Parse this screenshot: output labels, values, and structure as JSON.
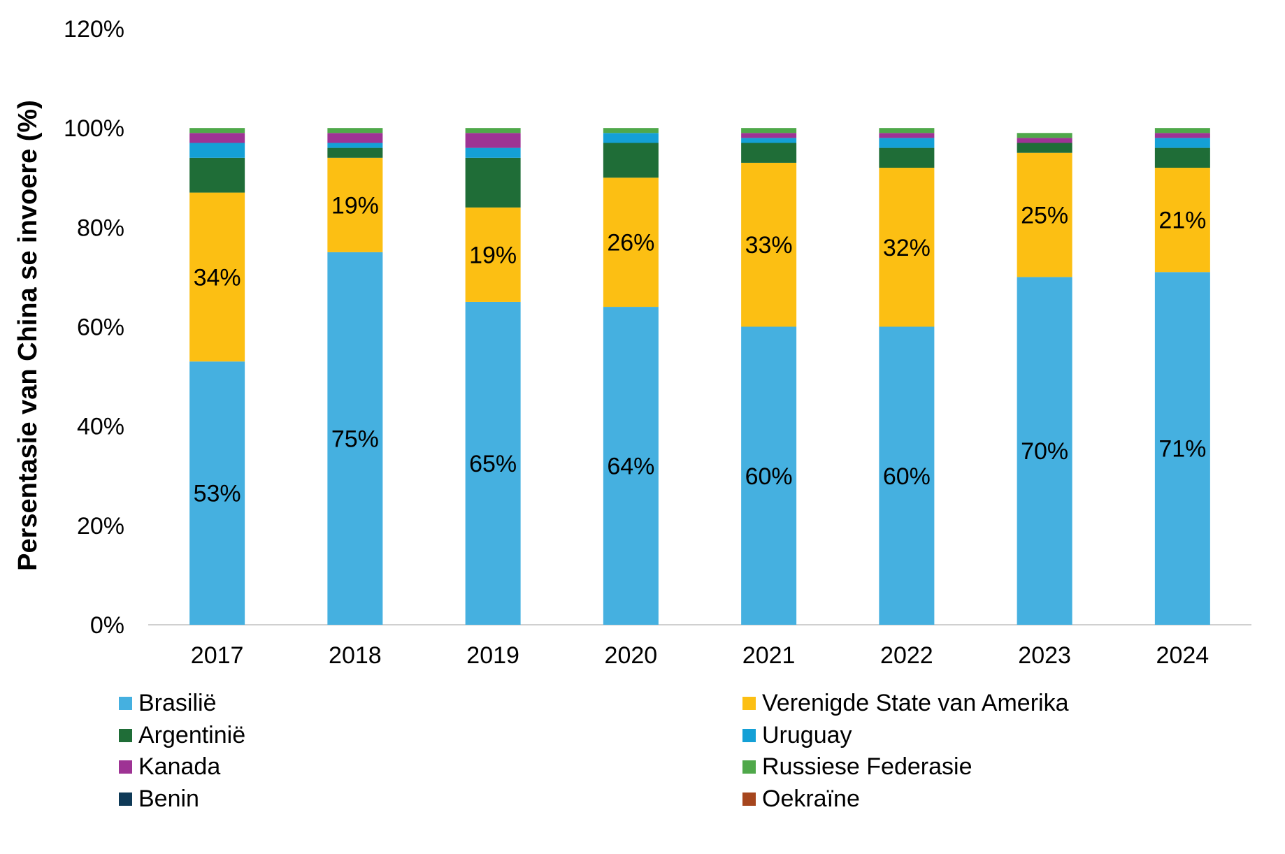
{
  "chart_data": {
    "type": "bar",
    "stacked": true,
    "ylabel": "Persentasie van China se invoere (%)",
    "ylim": [
      0,
      120
    ],
    "yticks": [
      "0%",
      "20%",
      "40%",
      "60%",
      "80%",
      "100%",
      "120%"
    ],
    "categories": [
      "2017",
      "2018",
      "2019",
      "2020",
      "2021",
      "2022",
      "2023",
      "2024"
    ],
    "legend_position": "bottom",
    "series": [
      {
        "name": "Brasilië",
        "color": "#45B0E0",
        "values": [
          53,
          75,
          65,
          64,
          60,
          60,
          70,
          71
        ],
        "labels": [
          "53%",
          "75%",
          "65%",
          "64%",
          "60%",
          "60%",
          "70%",
          "71%"
        ]
      },
      {
        "name": "Verenigde State van Amerika",
        "color": "#FCBF13",
        "values": [
          34,
          19,
          19,
          26,
          33,
          32,
          25,
          21
        ],
        "labels": [
          "34%",
          "19%",
          "19%",
          "26%",
          "33%",
          "32%",
          "25%",
          "21%"
        ]
      },
      {
        "name": "Argentinië",
        "color": "#1F6D37",
        "values": [
          7,
          2,
          10,
          7,
          4,
          4,
          2,
          4
        ]
      },
      {
        "name": "Uruguay",
        "color": "#14A0D6",
        "values": [
          3,
          1,
          2,
          2,
          1,
          2,
          0,
          2
        ]
      },
      {
        "name": "Kanada",
        "color": "#9E3394",
        "values": [
          2,
          2,
          3,
          0,
          1,
          1,
          1,
          1
        ]
      },
      {
        "name": "Russiese Federasie",
        "color": "#4FA84A",
        "values": [
          1,
          1,
          1,
          1,
          1,
          1,
          1,
          1
        ]
      },
      {
        "name": "Benin",
        "color": "#0F3A57",
        "values": [
          0,
          0,
          0,
          0,
          0,
          0,
          0,
          0
        ]
      },
      {
        "name": "Oekraïne",
        "color": "#A6461E",
        "values": [
          0,
          0,
          0,
          0,
          0,
          0,
          0,
          0
        ]
      }
    ]
  }
}
